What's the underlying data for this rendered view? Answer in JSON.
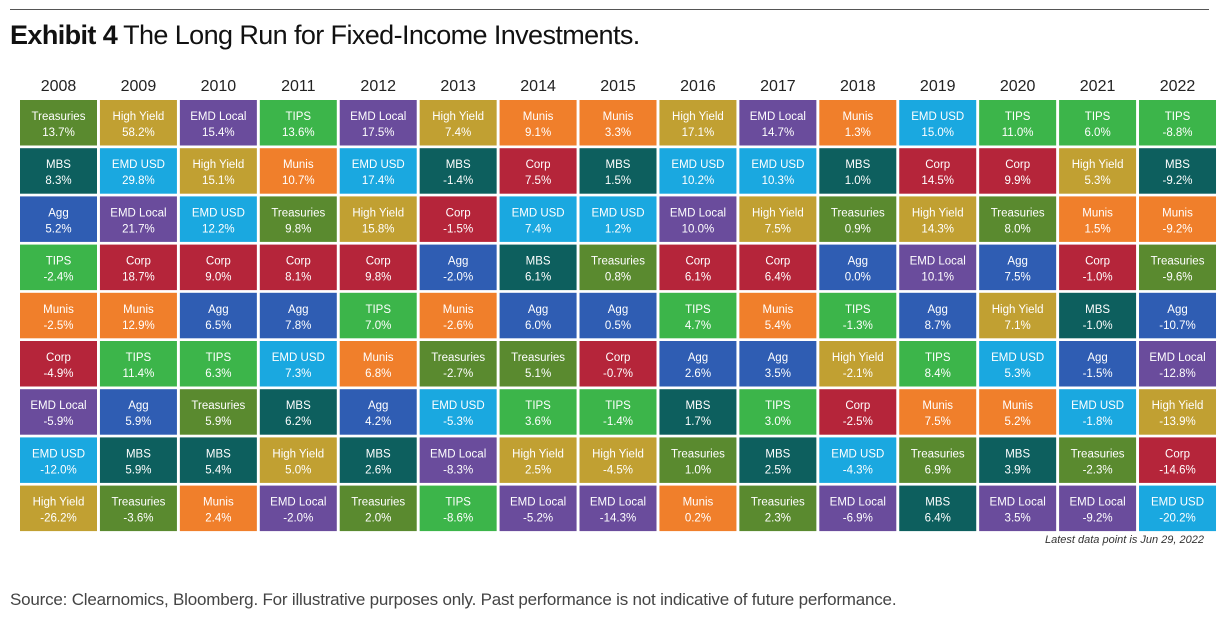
{
  "exhibit": "Exhibit 4",
  "title": "The Long Run for Fixed-Income Investments.",
  "note": "Latest data point is Jun 29, 2022",
  "source": "Source: Clearnomics, Bloomberg. For illustrative purposes only. Past performance is not indicative of future performance.",
  "colors": {
    "Treasuries": "#5a8a2f",
    "High Yield": "#c1a032",
    "EMD Local": "#6a4c9c",
    "TIPS": "#3cb54a",
    "Munis": "#f07f2b",
    "EMD USD": "#1aa8e0",
    "MBS": "#0d5f5e",
    "Corp": "#b5253a",
    "Agg": "#2f5db3"
  },
  "chart_data": {
    "type": "table",
    "years": [
      "2008",
      "2009",
      "2010",
      "2011",
      "2012",
      "2013",
      "2014",
      "2015",
      "2016",
      "2017",
      "2018",
      "2019",
      "2020",
      "2021",
      "2022"
    ],
    "columns": [
      [
        [
          "Treasuries",
          "13.7%"
        ],
        [
          "MBS",
          "8.3%"
        ],
        [
          "Agg",
          "5.2%"
        ],
        [
          "TIPS",
          "-2.4%"
        ],
        [
          "Munis",
          "-2.5%"
        ],
        [
          "Corp",
          "-4.9%"
        ],
        [
          "EMD Local",
          "-5.9%"
        ],
        [
          "EMD USD",
          "-12.0%"
        ],
        [
          "High Yield",
          "-26.2%"
        ]
      ],
      [
        [
          "High Yield",
          "58.2%"
        ],
        [
          "EMD USD",
          "29.8%"
        ],
        [
          "EMD Local",
          "21.7%"
        ],
        [
          "Corp",
          "18.7%"
        ],
        [
          "Munis",
          "12.9%"
        ],
        [
          "TIPS",
          "11.4%"
        ],
        [
          "Agg",
          "5.9%"
        ],
        [
          "MBS",
          "5.9%"
        ],
        [
          "Treasuries",
          "-3.6%"
        ]
      ],
      [
        [
          "EMD Local",
          "15.4%"
        ],
        [
          "High Yield",
          "15.1%"
        ],
        [
          "EMD USD",
          "12.2%"
        ],
        [
          "Corp",
          "9.0%"
        ],
        [
          "Agg",
          "6.5%"
        ],
        [
          "TIPS",
          "6.3%"
        ],
        [
          "Treasuries",
          "5.9%"
        ],
        [
          "MBS",
          "5.4%"
        ],
        [
          "Munis",
          "2.4%"
        ]
      ],
      [
        [
          "TIPS",
          "13.6%"
        ],
        [
          "Munis",
          "10.7%"
        ],
        [
          "Treasuries",
          "9.8%"
        ],
        [
          "Corp",
          "8.1%"
        ],
        [
          "Agg",
          "7.8%"
        ],
        [
          "EMD USD",
          "7.3%"
        ],
        [
          "MBS",
          "6.2%"
        ],
        [
          "High Yield",
          "5.0%"
        ],
        [
          "EMD Local",
          "-2.0%"
        ]
      ],
      [
        [
          "EMD Local",
          "17.5%"
        ],
        [
          "EMD USD",
          "17.4%"
        ],
        [
          "High Yield",
          "15.8%"
        ],
        [
          "Corp",
          "9.8%"
        ],
        [
          "TIPS",
          "7.0%"
        ],
        [
          "Munis",
          "6.8%"
        ],
        [
          "Agg",
          "4.2%"
        ],
        [
          "MBS",
          "2.6%"
        ],
        [
          "Treasuries",
          "2.0%"
        ]
      ],
      [
        [
          "High Yield",
          "7.4%"
        ],
        [
          "MBS",
          "-1.4%"
        ],
        [
          "Corp",
          "-1.5%"
        ],
        [
          "Agg",
          "-2.0%"
        ],
        [
          "Munis",
          "-2.6%"
        ],
        [
          "Treasuries",
          "-2.7%"
        ],
        [
          "EMD USD",
          "-5.3%"
        ],
        [
          "EMD Local",
          "-8.3%"
        ],
        [
          "TIPS",
          "-8.6%"
        ]
      ],
      [
        [
          "Munis",
          "9.1%"
        ],
        [
          "Corp",
          "7.5%"
        ],
        [
          "EMD USD",
          "7.4%"
        ],
        [
          "MBS",
          "6.1%"
        ],
        [
          "Agg",
          "6.0%"
        ],
        [
          "Treasuries",
          "5.1%"
        ],
        [
          "TIPS",
          "3.6%"
        ],
        [
          "High Yield",
          "2.5%"
        ],
        [
          "EMD Local",
          "-5.2%"
        ]
      ],
      [
        [
          "Munis",
          "3.3%"
        ],
        [
          "MBS",
          "1.5%"
        ],
        [
          "EMD USD",
          "1.2%"
        ],
        [
          "Treasuries",
          "0.8%"
        ],
        [
          "Agg",
          "0.5%"
        ],
        [
          "Corp",
          "-0.7%"
        ],
        [
          "TIPS",
          "-1.4%"
        ],
        [
          "High Yield",
          "-4.5%"
        ],
        [
          "EMD Local",
          "-14.3%"
        ]
      ],
      [
        [
          "High Yield",
          "17.1%"
        ],
        [
          "EMD USD",
          "10.2%"
        ],
        [
          "EMD Local",
          "10.0%"
        ],
        [
          "Corp",
          "6.1%"
        ],
        [
          "TIPS",
          "4.7%"
        ],
        [
          "Agg",
          "2.6%"
        ],
        [
          "MBS",
          "1.7%"
        ],
        [
          "Treasuries",
          "1.0%"
        ],
        [
          "Munis",
          "0.2%"
        ]
      ],
      [
        [
          "EMD Local",
          "14.7%"
        ],
        [
          "EMD USD",
          "10.3%"
        ],
        [
          "High Yield",
          "7.5%"
        ],
        [
          "Corp",
          "6.4%"
        ],
        [
          "Munis",
          "5.4%"
        ],
        [
          "Agg",
          "3.5%"
        ],
        [
          "TIPS",
          "3.0%"
        ],
        [
          "MBS",
          "2.5%"
        ],
        [
          "Treasuries",
          "2.3%"
        ]
      ],
      [
        [
          "Munis",
          "1.3%"
        ],
        [
          "MBS",
          "1.0%"
        ],
        [
          "Treasuries",
          "0.9%"
        ],
        [
          "Agg",
          "0.0%"
        ],
        [
          "TIPS",
          "-1.3%"
        ],
        [
          "High Yield",
          "-2.1%"
        ],
        [
          "Corp",
          "-2.5%"
        ],
        [
          "EMD USD",
          "-4.3%"
        ],
        [
          "EMD Local",
          "-6.9%"
        ]
      ],
      [
        [
          "EMD USD",
          "15.0%"
        ],
        [
          "Corp",
          "14.5%"
        ],
        [
          "High Yield",
          "14.3%"
        ],
        [
          "EMD Local",
          "10.1%"
        ],
        [
          "Agg",
          "8.7%"
        ],
        [
          "TIPS",
          "8.4%"
        ],
        [
          "Munis",
          "7.5%"
        ],
        [
          "Treasuries",
          "6.9%"
        ],
        [
          "MBS",
          "6.4%"
        ]
      ],
      [
        [
          "TIPS",
          "11.0%"
        ],
        [
          "Corp",
          "9.9%"
        ],
        [
          "Treasuries",
          "8.0%"
        ],
        [
          "Agg",
          "7.5%"
        ],
        [
          "High Yield",
          "7.1%"
        ],
        [
          "EMD USD",
          "5.3%"
        ],
        [
          "Munis",
          "5.2%"
        ],
        [
          "MBS",
          "3.9%"
        ],
        [
          "EMD Local",
          "3.5%"
        ]
      ],
      [
        [
          "TIPS",
          "6.0%"
        ],
        [
          "High Yield",
          "5.3%"
        ],
        [
          "Munis",
          "1.5%"
        ],
        [
          "Corp",
          "-1.0%"
        ],
        [
          "MBS",
          "-1.0%"
        ],
        [
          "Agg",
          "-1.5%"
        ],
        [
          "EMD USD",
          "-1.8%"
        ],
        [
          "Treasuries",
          "-2.3%"
        ],
        [
          "EMD Local",
          "-9.2%"
        ]
      ],
      [
        [
          "TIPS",
          "-8.8%"
        ],
        [
          "MBS",
          "-9.2%"
        ],
        [
          "Munis",
          "-9.2%"
        ],
        [
          "Treasuries",
          "-9.6%"
        ],
        [
          "Agg",
          "-10.7%"
        ],
        [
          "EMD Local",
          "-12.8%"
        ],
        [
          "High Yield",
          "-13.9%"
        ],
        [
          "Corp",
          "-14.6%"
        ],
        [
          "EMD USD",
          "-20.2%"
        ]
      ]
    ]
  }
}
